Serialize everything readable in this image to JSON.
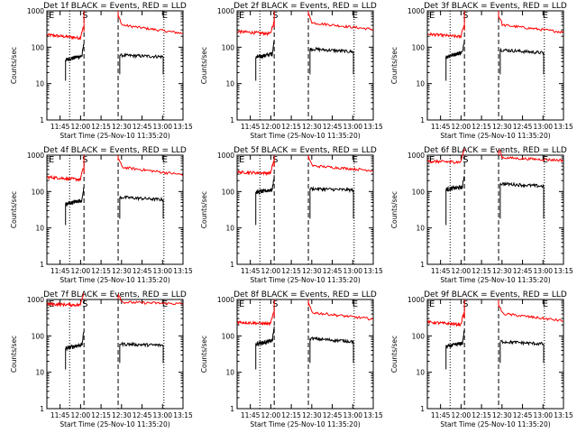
{
  "common": {
    "ylabel": "Counts/sec",
    "xlabel": "Start Time (25-Nov-10 11:35:20)",
    "x_ticks": [
      "11:45",
      "12:00",
      "12:15",
      "12:30",
      "12:45",
      "13:00",
      "13:15"
    ],
    "y_ticks": [
      "1",
      "10",
      "100",
      "1000"
    ],
    "x_range": [
      "11:35:20",
      "13:15:00"
    ],
    "y_range": [
      1,
      1000
    ],
    "y_scale": "log",
    "markers": [
      "E",
      "S",
      "E"
    ],
    "grid": false,
    "colors": {
      "events": "#000000",
      "lld": "#ff0000",
      "axes": "#000000",
      "background": "#ffffff"
    }
  },
  "chart_data": [
    {
      "type": "line",
      "title": "Det 1f  BLACK = Events, RED = LLD",
      "lld": {
        "pre": [
          218,
          175
        ],
        "post": [
          420,
          240
        ]
      },
      "events": {
        "pre": [
          45,
          60
        ],
        "post": [
          60,
          55
        ]
      }
    },
    {
      "type": "line",
      "title": "Det 2f  BLACK = Events, RED = LLD",
      "lld": {
        "pre": [
          270,
          230
        ],
        "post": [
          480,
          310
        ]
      },
      "events": {
        "pre": [
          52,
          68
        ],
        "post": [
          90,
          75
        ]
      }
    },
    {
      "type": "line",
      "title": "Det 3f  BLACK = Events, RED = LLD",
      "lld": {
        "pre": [
          230,
          190
        ],
        "post": [
          420,
          260
        ]
      },
      "events": {
        "pre": [
          55,
          75
        ],
        "post": [
          85,
          70
        ]
      }
    },
    {
      "type": "line",
      "title": "Det 4f  BLACK = Events, RED = LLD",
      "lld": {
        "pre": [
          250,
          210
        ],
        "post": [
          480,
          290
        ]
      },
      "events": {
        "pre": [
          45,
          60
        ],
        "post": [
          70,
          60
        ]
      }
    },
    {
      "type": "line",
      "title": "Det 5f  BLACK = Events, RED = LLD",
      "lld": {
        "pre": [
          340,
          320
        ],
        "post": [
          520,
          380
        ]
      },
      "events": {
        "pre": [
          95,
          115
        ],
        "post": [
          120,
          110
        ]
      }
    },
    {
      "type": "line",
      "title": "Det 6f  BLACK = Events, RED = LLD",
      "lld": {
        "pre": [
          680,
          640
        ],
        "post": [
          860,
          720
        ]
      },
      "events": {
        "pre": [
          115,
          135
        ],
        "post": [
          165,
          140
        ]
      }
    },
    {
      "type": "line",
      "title": "Det 7f  BLACK = Events, RED = LLD",
      "lld": {
        "pre": [
          750,
          700
        ],
        "post": [
          850,
          760
        ]
      },
      "events": {
        "pre": [
          45,
          60
        ],
        "post": [
          60,
          55
        ]
      }
    },
    {
      "type": "line",
      "title": "Det 8f  BLACK = Events, RED = LLD",
      "lld": {
        "pre": [
          240,
          210
        ],
        "post": [
          450,
          290
        ]
      },
      "events": {
        "pre": [
          60,
          75
        ],
        "post": [
          85,
          70
        ]
      }
    },
    {
      "type": "line",
      "title": "Det 9f  BLACK = Events, RED = LLD",
      "lld": {
        "pre": [
          240,
          200
        ],
        "post": [
          420,
          260
        ]
      },
      "events": {
        "pre": [
          50,
          65
        ],
        "post": [
          70,
          60
        ]
      }
    }
  ]
}
